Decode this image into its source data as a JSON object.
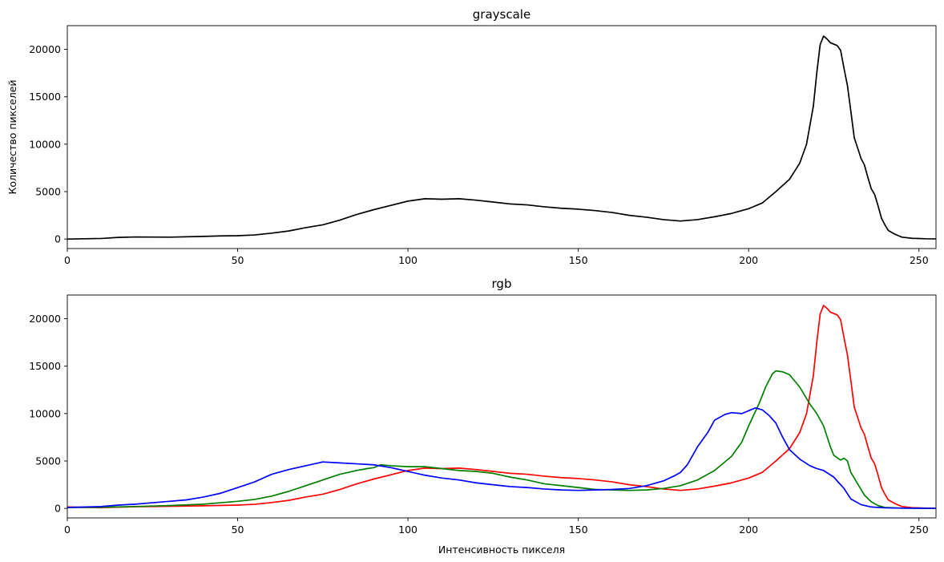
{
  "chart_data": [
    {
      "type": "line",
      "title": "grayscale",
      "xlabel": "",
      "ylabel": "Количество пикселей",
      "xlim": [
        0,
        255
      ],
      "ylim": [
        -1000,
        22500
      ],
      "xticks": [
        0,
        50,
        100,
        150,
        200,
        250
      ],
      "yticks": [
        0,
        5000,
        10000,
        15000,
        20000
      ],
      "grid": false,
      "series": [
        {
          "color": "#000000",
          "points": [
            [
              0,
              0
            ],
            [
              10,
              60
            ],
            [
              15,
              170
            ],
            [
              20,
              220
            ],
            [
              30,
              200
            ],
            [
              40,
              280
            ],
            [
              45,
              330
            ],
            [
              50,
              350
            ],
            [
              55,
              430
            ],
            [
              60,
              620
            ],
            [
              65,
              850
            ],
            [
              70,
              1200
            ],
            [
              75,
              1500
            ],
            [
              80,
              2000
            ],
            [
              85,
              2600
            ],
            [
              90,
              3100
            ],
            [
              95,
              3550
            ],
            [
              100,
              4000
            ],
            [
              105,
              4250
            ],
            [
              110,
              4200
            ],
            [
              115,
              4250
            ],
            [
              120,
              4100
            ],
            [
              125,
              3900
            ],
            [
              130,
              3700
            ],
            [
              135,
              3600
            ],
            [
              140,
              3400
            ],
            [
              145,
              3250
            ],
            [
              150,
              3150
            ],
            [
              155,
              3000
            ],
            [
              160,
              2800
            ],
            [
              165,
              2500
            ],
            [
              170,
              2300
            ],
            [
              175,
              2050
            ],
            [
              180,
              1900
            ],
            [
              185,
              2050
            ],
            [
              190,
              2350
            ],
            [
              195,
              2700
            ],
            [
              200,
              3200
            ],
            [
              204,
              3800
            ],
            [
              208,
              5000
            ],
            [
              212,
              6300
            ],
            [
              215,
              8000
            ],
            [
              217,
              10000
            ],
            [
              219,
              14000
            ],
            [
              220,
              17500
            ],
            [
              221,
              20500
            ],
            [
              222,
              21400
            ],
            [
              223,
              21100
            ],
            [
              224,
              20700
            ],
            [
              226,
              20400
            ],
            [
              227,
              19900
            ],
            [
              228,
              18000
            ],
            [
              229,
              16200
            ],
            [
              230,
              13500
            ],
            [
              231,
              10700
            ],
            [
              233,
              8500
            ],
            [
              234,
              7800
            ],
            [
              235,
              6500
            ],
            [
              236,
              5300
            ],
            [
              237,
              4700
            ],
            [
              238,
              3500
            ],
            [
              239,
              2200
            ],
            [
              240,
              1500
            ],
            [
              241,
              900
            ],
            [
              242,
              700
            ],
            [
              243,
              500
            ],
            [
              245,
              200
            ],
            [
              248,
              80
            ],
            [
              252,
              30
            ],
            [
              255,
              20
            ]
          ]
        }
      ]
    },
    {
      "type": "line",
      "title": "rgb",
      "xlabel": "Интенсивность пикселя",
      "ylabel": "",
      "xlim": [
        0,
        255
      ],
      "ylim": [
        -1000,
        22500
      ],
      "xticks": [
        0,
        50,
        100,
        150,
        200,
        250
      ],
      "yticks": [
        0,
        5000,
        10000,
        15000,
        20000
      ],
      "grid": false,
      "series": [
        {
          "color": "#ff0000",
          "points": [
            [
              0,
              150
            ],
            [
              10,
              80
            ],
            [
              20,
              180
            ],
            [
              30,
              220
            ],
            [
              40,
              280
            ],
            [
              50,
              350
            ],
            [
              55,
              430
            ],
            [
              60,
              620
            ],
            [
              65,
              850
            ],
            [
              70,
              1200
            ],
            [
              75,
              1500
            ],
            [
              80,
              2000
            ],
            [
              85,
              2600
            ],
            [
              90,
              3100
            ],
            [
              95,
              3550
            ],
            [
              100,
              4000
            ],
            [
              105,
              4250
            ],
            [
              110,
              4200
            ],
            [
              115,
              4250
            ],
            [
              120,
              4100
            ],
            [
              125,
              3900
            ],
            [
              130,
              3700
            ],
            [
              135,
              3600
            ],
            [
              140,
              3400
            ],
            [
              145,
              3250
            ],
            [
              150,
              3150
            ],
            [
              155,
              3000
            ],
            [
              160,
              2800
            ],
            [
              165,
              2500
            ],
            [
              170,
              2300
            ],
            [
              175,
              2050
            ],
            [
              180,
              1900
            ],
            [
              185,
              2050
            ],
            [
              190,
              2350
            ],
            [
              195,
              2700
            ],
            [
              200,
              3200
            ],
            [
              204,
              3800
            ],
            [
              208,
              5000
            ],
            [
              212,
              6300
            ],
            [
              215,
              8000
            ],
            [
              217,
              10000
            ],
            [
              219,
              14000
            ],
            [
              220,
              17500
            ],
            [
              221,
              20500
            ],
            [
              222,
              21400
            ],
            [
              223,
              21100
            ],
            [
              224,
              20700
            ],
            [
              226,
              20400
            ],
            [
              227,
              19900
            ],
            [
              228,
              18000
            ],
            [
              229,
              16200
            ],
            [
              230,
              13500
            ],
            [
              231,
              10700
            ],
            [
              233,
              8500
            ],
            [
              234,
              7800
            ],
            [
              235,
              6500
            ],
            [
              236,
              5300
            ],
            [
              237,
              4700
            ],
            [
              238,
              3500
            ],
            [
              239,
              2200
            ],
            [
              240,
              1500
            ],
            [
              241,
              900
            ],
            [
              242,
              700
            ],
            [
              243,
              500
            ],
            [
              245,
              200
            ],
            [
              248,
              80
            ],
            [
              252,
              30
            ],
            [
              255,
              20
            ]
          ]
        },
        {
          "color": "#008000",
          "points": [
            [
              0,
              100
            ],
            [
              10,
              120
            ],
            [
              20,
              200
            ],
            [
              30,
              300
            ],
            [
              40,
              450
            ],
            [
              45,
              600
            ],
            [
              50,
              750
            ],
            [
              55,
              950
            ],
            [
              60,
              1300
            ],
            [
              65,
              1800
            ],
            [
              70,
              2400
            ],
            [
              75,
              3000
            ],
            [
              80,
              3600
            ],
            [
              85,
              4000
            ],
            [
              88,
              4200
            ],
            [
              90,
              4300
            ],
            [
              92,
              4600
            ],
            [
              95,
              4500
            ],
            [
              100,
              4400
            ],
            [
              105,
              4400
            ],
            [
              110,
              4200
            ],
            [
              115,
              4000
            ],
            [
              120,
              3900
            ],
            [
              125,
              3700
            ],
            [
              130,
              3300
            ],
            [
              135,
              3000
            ],
            [
              140,
              2600
            ],
            [
              145,
              2400
            ],
            [
              150,
              2200
            ],
            [
              155,
              2000
            ],
            [
              160,
              1950
            ],
            [
              165,
              1900
            ],
            [
              170,
              1950
            ],
            [
              175,
              2100
            ],
            [
              180,
              2400
            ],
            [
              185,
              3000
            ],
            [
              190,
              4000
            ],
            [
              195,
              5500
            ],
            [
              198,
              7000
            ],
            [
              200,
              8700
            ],
            [
              203,
              11000
            ],
            [
              205,
              12800
            ],
            [
              207,
              14200
            ],
            [
              208,
              14500
            ],
            [
              210,
              14400
            ],
            [
              212,
              14100
            ],
            [
              215,
              12800
            ],
            [
              218,
              11000
            ],
            [
              220,
              10000
            ],
            [
              222,
              8700
            ],
            [
              224,
              6500
            ],
            [
              225,
              5600
            ],
            [
              227,
              5100
            ],
            [
              228,
              5300
            ],
            [
              229,
              5000
            ],
            [
              230,
              3800
            ],
            [
              232,
              2600
            ],
            [
              234,
              1400
            ],
            [
              236,
              700
            ],
            [
              238,
              300
            ],
            [
              240,
              100
            ],
            [
              245,
              30
            ],
            [
              250,
              10
            ],
            [
              255,
              10
            ]
          ]
        },
        {
          "color": "#0000ff",
          "points": [
            [
              0,
              100
            ],
            [
              10,
              200
            ],
            [
              15,
              350
            ],
            [
              20,
              450
            ],
            [
              25,
              600
            ],
            [
              30,
              750
            ],
            [
              35,
              900
            ],
            [
              40,
              1200
            ],
            [
              45,
              1600
            ],
            [
              50,
              2200
            ],
            [
              55,
              2800
            ],
            [
              60,
              3600
            ],
            [
              65,
              4100
            ],
            [
              70,
              4500
            ],
            [
              75,
              4900
            ],
            [
              80,
              4800
            ],
            [
              85,
              4700
            ],
            [
              90,
              4600
            ],
            [
              95,
              4300
            ],
            [
              100,
              3900
            ],
            [
              105,
              3500
            ],
            [
              110,
              3200
            ],
            [
              115,
              3000
            ],
            [
              120,
              2700
            ],
            [
              125,
              2500
            ],
            [
              130,
              2300
            ],
            [
              135,
              2200
            ],
            [
              140,
              2050
            ],
            [
              145,
              1950
            ],
            [
              150,
              1900
            ],
            [
              155,
              1950
            ],
            [
              160,
              2000
            ],
            [
              165,
              2100
            ],
            [
              170,
              2400
            ],
            [
              175,
              2900
            ],
            [
              178,
              3400
            ],
            [
              180,
              3800
            ],
            [
              182,
              4600
            ],
            [
              185,
              6500
            ],
            [
              188,
              8000
            ],
            [
              190,
              9300
            ],
            [
              193,
              9900
            ],
            [
              195,
              10100
            ],
            [
              198,
              10000
            ],
            [
              200,
              10300
            ],
            [
              202,
              10600
            ],
            [
              204,
              10400
            ],
            [
              206,
              9800
            ],
            [
              208,
              9000
            ],
            [
              210,
              7500
            ],
            [
              212,
              6200
            ],
            [
              215,
              5200
            ],
            [
              218,
              4500
            ],
            [
              220,
              4200
            ],
            [
              222,
              4000
            ],
            [
              225,
              3300
            ],
            [
              228,
              2100
            ],
            [
              230,
              1000
            ],
            [
              233,
              400
            ],
            [
              236,
              150
            ],
            [
              240,
              60
            ],
            [
              245,
              30
            ],
            [
              250,
              20
            ],
            [
              255,
              10
            ]
          ]
        }
      ]
    }
  ]
}
